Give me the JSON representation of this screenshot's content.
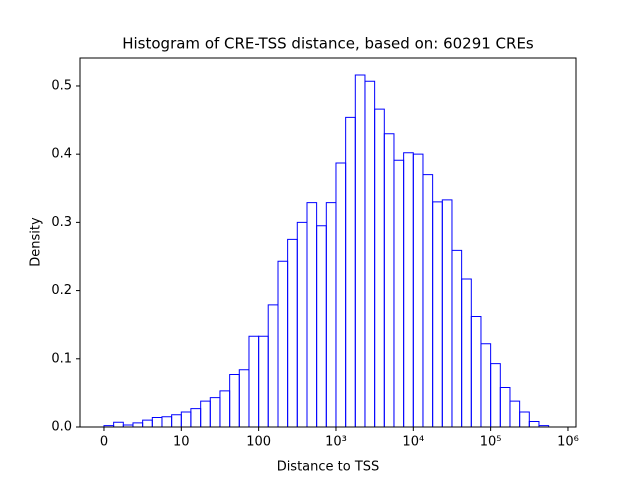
{
  "chart_data": {
    "type": "histogram",
    "title": "Histogram of CRE-TSS distance, based on: 60291 CREs",
    "xlabel": "Distance to TSS",
    "ylabel": "Density",
    "xscale": "symlog",
    "linthresh": 10,
    "color": "#0000ff",
    "bins": [
      0,
      1.25,
      2.5,
      3.75,
      5,
      6.25,
      7.5,
      8.75,
      10,
      13.3,
      17.8,
      23.7,
      31.6,
      42.2,
      56.2,
      75,
      100,
      133,
      178,
      237,
      316,
      422,
      562,
      750,
      1000,
      1334,
      1778,
      2371,
      3162,
      4217,
      5623,
      7499,
      10000,
      13335,
      17783,
      23714,
      31623,
      42170,
      56234,
      74989,
      100000,
      133352,
      177828,
      237137,
      316228,
      421697,
      562341
    ],
    "values": [
      0.002,
      0.007,
      0.003,
      0.006,
      0.01,
      0.014,
      0.015,
      0.018,
      0.022,
      0.027,
      0.038,
      0.043,
      0.053,
      0.077,
      0.084,
      0.133,
      0.133,
      0.179,
      0.243,
      0.275,
      0.3,
      0.329,
      0.295,
      0.329,
      0.387,
      0.454,
      0.516,
      0.507,
      0.466,
      0.43,
      0.391,
      0.402,
      0.4,
      0.37,
      0.33,
      0.333,
      0.259,
      0.217,
      0.162,
      0.122,
      0.093,
      0.058,
      0.038,
      0.022,
      0.008,
      0.002
    ],
    "xlim": [
      -3.1,
      1270000
    ],
    "xticks": [
      0,
      10,
      100,
      {
        "value": 1000,
        "label": "10³"
      },
      {
        "value": 10000,
        "label": "10⁴"
      },
      {
        "value": 100000,
        "label": "10⁵"
      },
      {
        "value": 1000000,
        "label": "10⁶"
      }
    ],
    "ylim": [
      0,
      0.541
    ],
    "yticks": [
      {
        "value": 0,
        "label": "0.0"
      },
      0.1,
      0.2,
      0.3,
      0.4,
      0.5
    ]
  }
}
